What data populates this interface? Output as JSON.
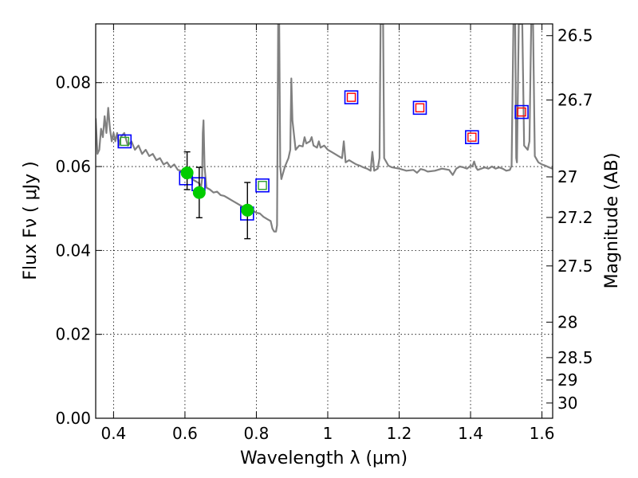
{
  "chart_data": {
    "type": "scatter",
    "xlabel": "Wavelength  λ (μm)",
    "ylabel": "Flux  Fν ( μJy )",
    "y2label": "Magnitude (AB)",
    "xlim": [
      0.35,
      1.63
    ],
    "ylim": [
      0.0,
      0.094
    ],
    "x_ticks": [
      {
        "value": 0.4,
        "label": "0.4"
      },
      {
        "value": 0.6,
        "label": "0.6"
      },
      {
        "value": 0.8,
        "label": "0.8"
      },
      {
        "value": 1.0,
        "label": "1"
      },
      {
        "value": 1.2,
        "label": "1.2"
      },
      {
        "value": 1.4,
        "label": "1.4"
      },
      {
        "value": 1.6,
        "label": "1.6"
      }
    ],
    "y_ticks": [
      {
        "value": 0.0,
        "label": "0.00"
      },
      {
        "value": 0.02,
        "label": "0.02"
      },
      {
        "value": 0.04,
        "label": "0.04"
      },
      {
        "value": 0.06,
        "label": "0.06"
      },
      {
        "value": 0.08,
        "label": "0.08"
      }
    ],
    "y2_ticks": [
      {
        "value": 26.5,
        "label": "26.5"
      },
      {
        "value": 26.7,
        "label": "26.7"
      },
      {
        "value": 27.0,
        "label": "27"
      },
      {
        "value": 27.2,
        "label": "27.2"
      },
      {
        "value": 27.5,
        "label": "27.5"
      },
      {
        "value": 28.0,
        "label": "28"
      },
      {
        "value": 28.5,
        "label": "28.5"
      },
      {
        "value": 29.0,
        "label": "29"
      },
      {
        "value": 30.0,
        "label": "30"
      }
    ],
    "grid": true,
    "series": [
      {
        "kind": "line",
        "color": "#808080",
        "points": [
          [
            0.35,
            0.0715
          ],
          [
            0.355,
            0.063
          ],
          [
            0.36,
            0.064
          ],
          [
            0.365,
            0.069
          ],
          [
            0.37,
            0.067
          ],
          [
            0.375,
            0.072
          ],
          [
            0.38,
            0.068
          ],
          [
            0.385,
            0.074
          ],
          [
            0.39,
            0.069
          ],
          [
            0.395,
            0.066
          ],
          [
            0.4,
            0.068
          ],
          [
            0.405,
            0.066
          ],
          [
            0.41,
            0.068
          ],
          [
            0.415,
            0.065
          ],
          [
            0.42,
            0.067
          ],
          [
            0.43,
            0.068
          ],
          [
            0.44,
            0.065
          ],
          [
            0.45,
            0.066
          ],
          [
            0.46,
            0.064
          ],
          [
            0.47,
            0.065
          ],
          [
            0.48,
            0.063
          ],
          [
            0.49,
            0.064
          ],
          [
            0.5,
            0.0625
          ],
          [
            0.51,
            0.063
          ],
          [
            0.52,
            0.0615
          ],
          [
            0.53,
            0.062
          ],
          [
            0.54,
            0.0605
          ],
          [
            0.55,
            0.061
          ],
          [
            0.56,
            0.0598
          ],
          [
            0.57,
            0.0605
          ],
          [
            0.58,
            0.0592
          ],
          [
            0.59,
            0.059
          ],
          [
            0.6,
            0.058
          ],
          [
            0.61,
            0.0578
          ],
          [
            0.62,
            0.057
          ],
          [
            0.63,
            0.0565
          ],
          [
            0.64,
            0.056
          ],
          [
            0.645,
            0.055
          ],
          [
            0.648,
            0.057
          ],
          [
            0.65,
            0.068
          ],
          [
            0.652,
            0.071
          ],
          [
            0.655,
            0.06
          ],
          [
            0.66,
            0.055
          ],
          [
            0.67,
            0.0545
          ],
          [
            0.68,
            0.0538
          ],
          [
            0.69,
            0.054
          ],
          [
            0.7,
            0.0532
          ],
          [
            0.71,
            0.053
          ],
          [
            0.72,
            0.0525
          ],
          [
            0.73,
            0.052
          ],
          [
            0.74,
            0.0515
          ],
          [
            0.75,
            0.051
          ],
          [
            0.76,
            0.0505
          ],
          [
            0.77,
            0.0502
          ],
          [
            0.78,
            0.05
          ],
          [
            0.79,
            0.0495
          ],
          [
            0.8,
            0.049
          ],
          [
            0.81,
            0.0488
          ],
          [
            0.82,
            0.048
          ],
          [
            0.83,
            0.0475
          ],
          [
            0.84,
            0.047
          ],
          [
            0.845,
            0.0452
          ],
          [
            0.85,
            0.0445
          ],
          [
            0.855,
            0.0445
          ],
          [
            0.858,
            0.046
          ],
          [
            0.861,
            0.094
          ],
          [
            0.864,
            0.094
          ],
          [
            0.867,
            0.06
          ],
          [
            0.87,
            0.057
          ],
          [
            0.88,
            0.06
          ],
          [
            0.89,
            0.062
          ],
          [
            0.895,
            0.064
          ],
          [
            0.898,
            0.081
          ],
          [
            0.901,
            0.071
          ],
          [
            0.91,
            0.064
          ],
          [
            0.92,
            0.065
          ],
          [
            0.93,
            0.0648
          ],
          [
            0.935,
            0.067
          ],
          [
            0.94,
            0.0655
          ],
          [
            0.95,
            0.066
          ],
          [
            0.955,
            0.067
          ],
          [
            0.96,
            0.065
          ],
          [
            0.97,
            0.0645
          ],
          [
            0.975,
            0.066
          ],
          [
            0.98,
            0.0645
          ],
          [
            0.99,
            0.065
          ],
          [
            1.0,
            0.064
          ],
          [
            1.01,
            0.0635
          ],
          [
            1.02,
            0.063
          ],
          [
            1.03,
            0.0625
          ],
          [
            1.04,
            0.062
          ],
          [
            1.045,
            0.066
          ],
          [
            1.05,
            0.061
          ],
          [
            1.06,
            0.0615
          ],
          [
            1.07,
            0.061
          ],
          [
            1.08,
            0.0605
          ],
          [
            1.09,
            0.0602
          ],
          [
            1.1,
            0.0598
          ],
          [
            1.11,
            0.0595
          ],
          [
            1.12,
            0.059
          ],
          [
            1.125,
            0.0635
          ],
          [
            1.128,
            0.061
          ],
          [
            1.13,
            0.059
          ],
          [
            1.14,
            0.0595
          ],
          [
            1.145,
            0.062
          ],
          [
            1.148,
            0.094
          ],
          [
            1.155,
            0.094
          ],
          [
            1.158,
            0.062
          ],
          [
            1.17,
            0.0602
          ],
          [
            1.18,
            0.0598
          ],
          [
            1.2,
            0.0595
          ],
          [
            1.22,
            0.059
          ],
          [
            1.24,
            0.0592
          ],
          [
            1.25,
            0.0585
          ],
          [
            1.26,
            0.0594
          ],
          [
            1.27,
            0.0592
          ],
          [
            1.28,
            0.0588
          ],
          [
            1.3,
            0.059
          ],
          [
            1.32,
            0.0595
          ],
          [
            1.34,
            0.0592
          ],
          [
            1.35,
            0.058
          ],
          [
            1.36,
            0.0595
          ],
          [
            1.37,
            0.06
          ],
          [
            1.38,
            0.0598
          ],
          [
            1.39,
            0.0595
          ],
          [
            1.4,
            0.0602
          ],
          [
            1.405,
            0.06
          ],
          [
            1.41,
            0.0612
          ],
          [
            1.415,
            0.0598
          ],
          [
            1.42,
            0.0592
          ],
          [
            1.43,
            0.0595
          ],
          [
            1.44,
            0.0598
          ],
          [
            1.45,
            0.0595
          ],
          [
            1.46,
            0.06
          ],
          [
            1.47,
            0.0595
          ],
          [
            1.48,
            0.0598
          ],
          [
            1.49,
            0.0595
          ],
          [
            1.5,
            0.059
          ],
          [
            1.51,
            0.0592
          ],
          [
            1.515,
            0.0602
          ],
          [
            1.52,
            0.094
          ],
          [
            1.525,
            0.094
          ],
          [
            1.528,
            0.062
          ],
          [
            1.53,
            0.061
          ],
          [
            1.535,
            0.094
          ],
          [
            1.545,
            0.094
          ],
          [
            1.55,
            0.065
          ],
          [
            1.56,
            0.064
          ],
          [
            1.565,
            0.066
          ],
          [
            1.57,
            0.094
          ],
          [
            1.575,
            0.094
          ],
          [
            1.58,
            0.0625
          ],
          [
            1.59,
            0.061
          ],
          [
            1.6,
            0.0605
          ],
          [
            1.61,
            0.0602
          ],
          [
            1.62,
            0.0598
          ],
          [
            1.63,
            0.0595
          ]
        ]
      },
      {
        "kind": "model-boxes",
        "edge_color": "#0000ff",
        "points": [
          {
            "x": 0.431,
            "y": 0.066
          },
          {
            "x": 0.603,
            "y": 0.0572
          },
          {
            "x": 0.638,
            "y": 0.0558
          },
          {
            "x": 0.774,
            "y": 0.0488
          },
          {
            "x": 0.817,
            "y": 0.0555
          },
          {
            "x": 1.066,
            "y": 0.0765
          },
          {
            "x": 1.258,
            "y": 0.074
          },
          {
            "x": 1.404,
            "y": 0.067
          },
          {
            "x": 1.543,
            "y": 0.073
          }
        ]
      },
      {
        "kind": "inner-boxes",
        "points": [
          {
            "x": 0.431,
            "y": 0.066,
            "color": "#2ca02c"
          },
          {
            "x": 0.817,
            "y": 0.0555,
            "color": "#2ca02c"
          },
          {
            "x": 1.066,
            "y": 0.0765,
            "color": "#ff0000"
          },
          {
            "x": 1.258,
            "y": 0.074,
            "color": "#ff0000"
          },
          {
            "x": 1.404,
            "y": 0.067,
            "color": "#ff0000"
          },
          {
            "x": 1.543,
            "y": 0.073,
            "color": "#ff0000"
          }
        ]
      },
      {
        "kind": "measurements",
        "color": "#00cc00",
        "points": [
          {
            "x": 0.606,
            "y": 0.0585,
            "err_low": 0.0545,
            "err_high": 0.0635
          },
          {
            "x": 0.64,
            "y": 0.0538,
            "err_low": 0.0478,
            "err_high": 0.0598
          },
          {
            "x": 0.775,
            "y": 0.0496,
            "err_low": 0.0428,
            "err_high": 0.0562
          }
        ]
      }
    ]
  }
}
